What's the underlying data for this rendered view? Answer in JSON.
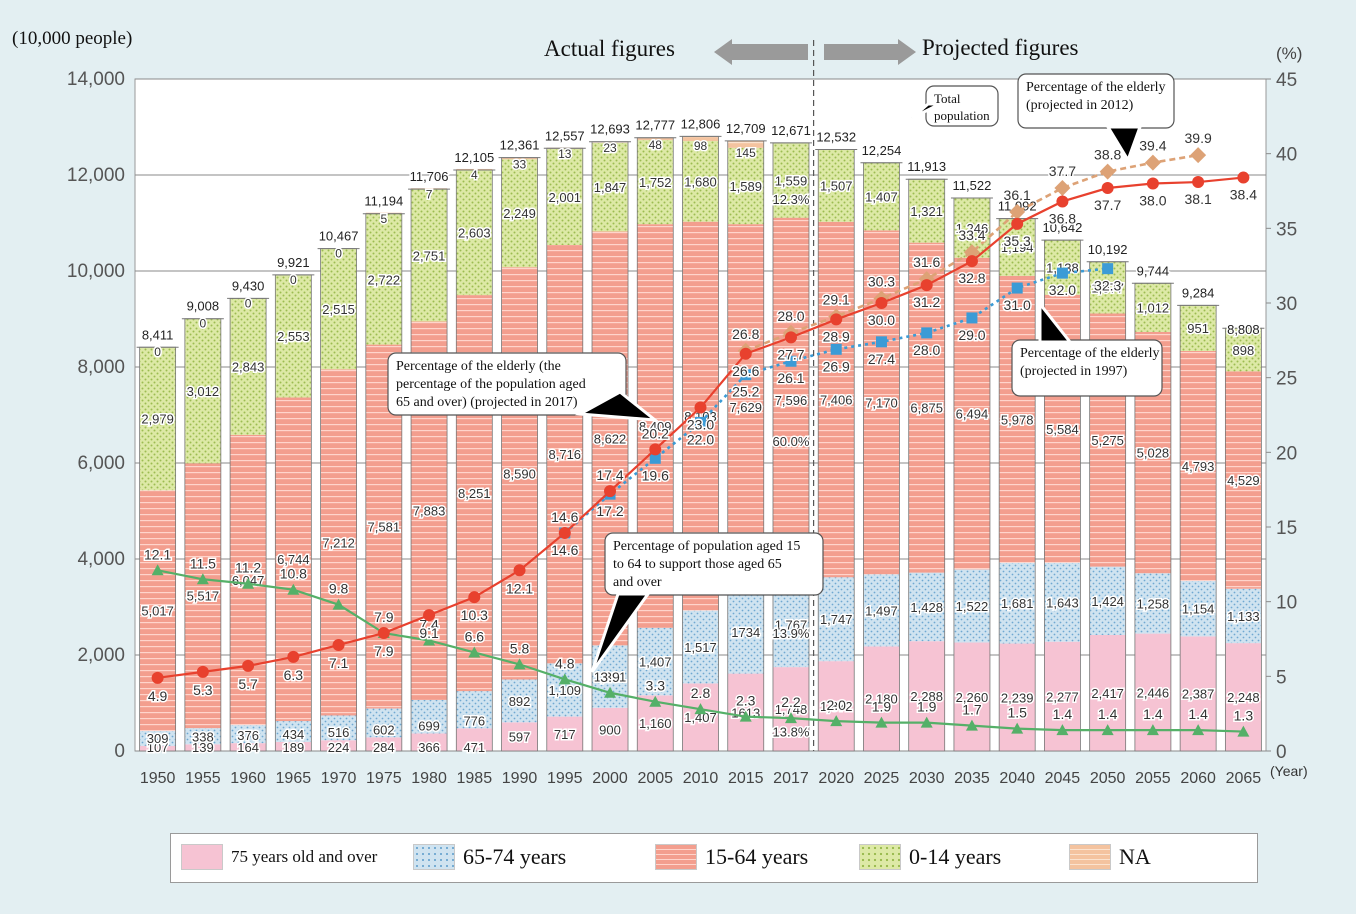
{
  "header": {
    "left_unit": "(10,000 people)",
    "right_unit": "(%)",
    "actual": "Actual figures",
    "projected": "Projected figures",
    "x_unit": "(Year)"
  },
  "colors": {
    "age75": "#f6c3d3",
    "age65": "#cfe3f0",
    "age15": "#f39e8e",
    "age0": "#dde9a6",
    "na": "#f4c39f",
    "elderly2017": "#e8412e",
    "elderly1997": "#3b9bd6",
    "elderly2012": "#dda276",
    "support": "#55b068",
    "bg": "#e3eff2"
  },
  "chart_data": {
    "type": "bar",
    "stacked": true,
    "categories": [
      "1950",
      "1955",
      "1960",
      "1965",
      "1970",
      "1975",
      "1980",
      "1985",
      "1990",
      "1995",
      "2000",
      "2005",
      "2010",
      "2015",
      "2017",
      "2020",
      "2025",
      "2030",
      "2035",
      "2040",
      "2045",
      "2050",
      "2055",
      "2060",
      "2065"
    ],
    "ylim_left": [
      0,
      14000
    ],
    "ylim_right": [
      0,
      45
    ],
    "yticks_left": [
      "0",
      "2,000",
      "4,000",
      "6,000",
      "8,000",
      "10,000",
      "12,000",
      "14,000"
    ],
    "yticks_right": [
      "0",
      "5",
      "10",
      "15",
      "20",
      "25",
      "30",
      "35",
      "40",
      "45"
    ],
    "grid": true,
    "legend_position": "bottom",
    "series": [
      {
        "name": "75 years old and over",
        "values": [
          107,
          139,
          164,
          189,
          224,
          284,
          366,
          471,
          597,
          717,
          900,
          1160,
          1407,
          1613,
          1748,
          1872,
          2180,
          2288,
          2260,
          2239,
          2277,
          2417,
          2446,
          2387,
          2248
        ],
        "labels": [
          "107",
          "139",
          "164",
          "189",
          "224",
          "284",
          "366",
          "471",
          "597",
          "717",
          "900",
          "1,160",
          "1,407",
          "1613",
          "1,748",
          "1,872",
          "2,180",
          "2,288",
          "2,260",
          "2,239",
          "2,277",
          "2,417",
          "2,446",
          "2,387",
          "2,248"
        ]
      },
      {
        "name": "65-74 years",
        "values": [
          309,
          338,
          376,
          434,
          516,
          602,
          699,
          776,
          892,
          1109,
          1301,
          1407,
          1517,
          1734,
          1767,
          1747,
          1497,
          1428,
          1522,
          1681,
          1643,
          1424,
          1258,
          1154,
          1133
        ],
        "labels": [
          "309",
          "338",
          "376",
          "434",
          "516",
          "602",
          "699",
          "776",
          "892",
          "1,109",
          "1,301",
          "1,407",
          "1,517",
          "1734",
          "1,767",
          "1,747",
          "1,497",
          "1,428",
          "1,522",
          "1,681",
          "1,643",
          "1,424",
          "1,258",
          "1,154",
          "1,133"
        ]
      },
      {
        "name": "15-64 years",
        "values": [
          5017,
          5517,
          6047,
          6744,
          7212,
          7581,
          7883,
          8251,
          8590,
          8716,
          8622,
          8409,
          8103,
          7629,
          7596,
          7406,
          7170,
          6875,
          6494,
          5978,
          5584,
          5275,
          5028,
          4793,
          4529
        ],
        "labels": [
          "5,017",
          "5,517",
          "6,047",
          "6,744",
          "7,212",
          "7,581",
          "7,883",
          "8,251",
          "8,590",
          "8,716",
          "8,622",
          "8,409",
          "8,103",
          "7,629",
          "7,596",
          "7,406",
          "7,170",
          "6,875",
          "6,494",
          "5,978",
          "5,584",
          "5,275",
          "5,028",
          "4,793",
          "4,529"
        ]
      },
      {
        "name": "0-14 years",
        "values": [
          2979,
          3012,
          2843,
          2553,
          2515,
          2722,
          2751,
          2603,
          2249,
          2001,
          1847,
          1752,
          1680,
          1589,
          1559,
          1507,
          1407,
          1321,
          1246,
          1194,
          1138,
          1077,
          1012,
          951,
          898
        ],
        "labels": [
          "2,979",
          "3,012",
          "2,843",
          "2,553",
          "2,515",
          "2,722",
          "2,751",
          "2,603",
          "2,249",
          "2,001",
          "1,847",
          "1,752",
          "1,680",
          "1,589",
          "1,559",
          "1,507",
          "1,407",
          "1,321",
          "1,246",
          "1,194",
          "1,138",
          "1,077",
          "1,012",
          "951",
          "898"
        ]
      },
      {
        "name": "NA",
        "values": [
          0,
          0,
          0,
          0,
          0,
          5,
          7,
          4,
          33,
          13,
          23,
          48,
          98,
          145,
          0,
          0,
          0,
          0,
          0,
          0,
          0,
          0,
          0,
          0,
          0
        ],
        "labels": [
          "0",
          "0",
          "0",
          "0",
          "0",
          "5",
          "7",
          "4",
          "33",
          "13",
          "23",
          "48",
          "98",
          "145",
          "",
          "",
          "",
          "",
          "",
          "",
          "",
          "",
          "",
          "",
          ""
        ]
      }
    ],
    "totals": [
      8411,
      9008,
      9430,
      9921,
      10467,
      11194,
      11706,
      12105,
      12361,
      12557,
      12693,
      12777,
      12806,
      12709,
      12671,
      12532,
      12254,
      11913,
      11522,
      11092,
      10642,
      10192,
      9744,
      9284,
      8808
    ],
    "total_labels": [
      "8,411",
      "9,008",
      "9,430",
      "9,921",
      "10,467",
      "11,194",
      "11,706",
      "12,105",
      "12,361",
      "12,557",
      "12,693",
      "12,777",
      "12,806",
      "12,709",
      "12,671",
      "12,532",
      "12,254",
      "11,913",
      "11,522",
      "11,092",
      "10,642",
      "10,192",
      "9,744",
      "9,284",
      "8,808"
    ],
    "lines": [
      {
        "name": "Percentage of the elderly (projected in 2017)",
        "axis": "right",
        "values": [
          4.9,
          5.3,
          5.7,
          6.3,
          7.1,
          7.9,
          9.1,
          10.3,
          12.1,
          14.6,
          17.4,
          20.2,
          23.0,
          26.6,
          27.7,
          28.9,
          30.0,
          31.2,
          32.8,
          35.3,
          36.8,
          37.7,
          38.0,
          38.1,
          38.4
        ]
      },
      {
        "name": "Percentage of the elderly (projected in 1997)",
        "axis": "right",
        "start_index": 9,
        "values": [
          14.6,
          17.2,
          19.6,
          22.0,
          25.2,
          26.1,
          26.9,
          27.4,
          28.0,
          29.0,
          31.0,
          32.0,
          32.3
        ]
      },
      {
        "name": "Percentage of the elderly (projected in 2012)",
        "axis": "right",
        "start_index": 13,
        "values": [
          26.8,
          28.0,
          29.1,
          30.3,
          31.6,
          33.4,
          36.1,
          37.7,
          38.8,
          39.4,
          39.9
        ]
      },
      {
        "name": "Percentage of population aged 15 to 64 to support those aged 65 and over",
        "axis": "right",
        "values": [
          12.1,
          11.5,
          11.2,
          10.8,
          9.8,
          7.9,
          7.4,
          6.6,
          5.8,
          4.8,
          3.9,
          3.3,
          2.8,
          2.3,
          2.2,
          2.0,
          1.9,
          1.9,
          1.7,
          1.5,
          1.4,
          1.4,
          1.4,
          1.4,
          1.3
        ],
        "labels": [
          "12.1",
          "11.5",
          "11.2",
          "10.8",
          "9.8",
          "7.9",
          "7.4",
          "6.6",
          "5.8",
          "4.8",
          "3.9",
          "3.3",
          "2.8",
          "2.3",
          "2.2",
          "2.0",
          "1.9",
          "1.9",
          "1.7",
          "1.5",
          "1.4",
          "1.4",
          "1.4",
          "1.4",
          "1.3"
        ]
      }
    ],
    "pct2017": [
      "12.3%",
      "60.0%",
      "13.9%",
      "13.8%"
    ],
    "annotations": [
      "Total population",
      "Percentage of the elderly (projected in 2012)",
      "Percentage of the elderly (the percentage of the population aged 65 and over) (projected in 2017)",
      "Percentage of population aged 15 to 64 to support those aged 65 and over",
      "Percentage of the elderly (projected in 1997)"
    ]
  }
}
